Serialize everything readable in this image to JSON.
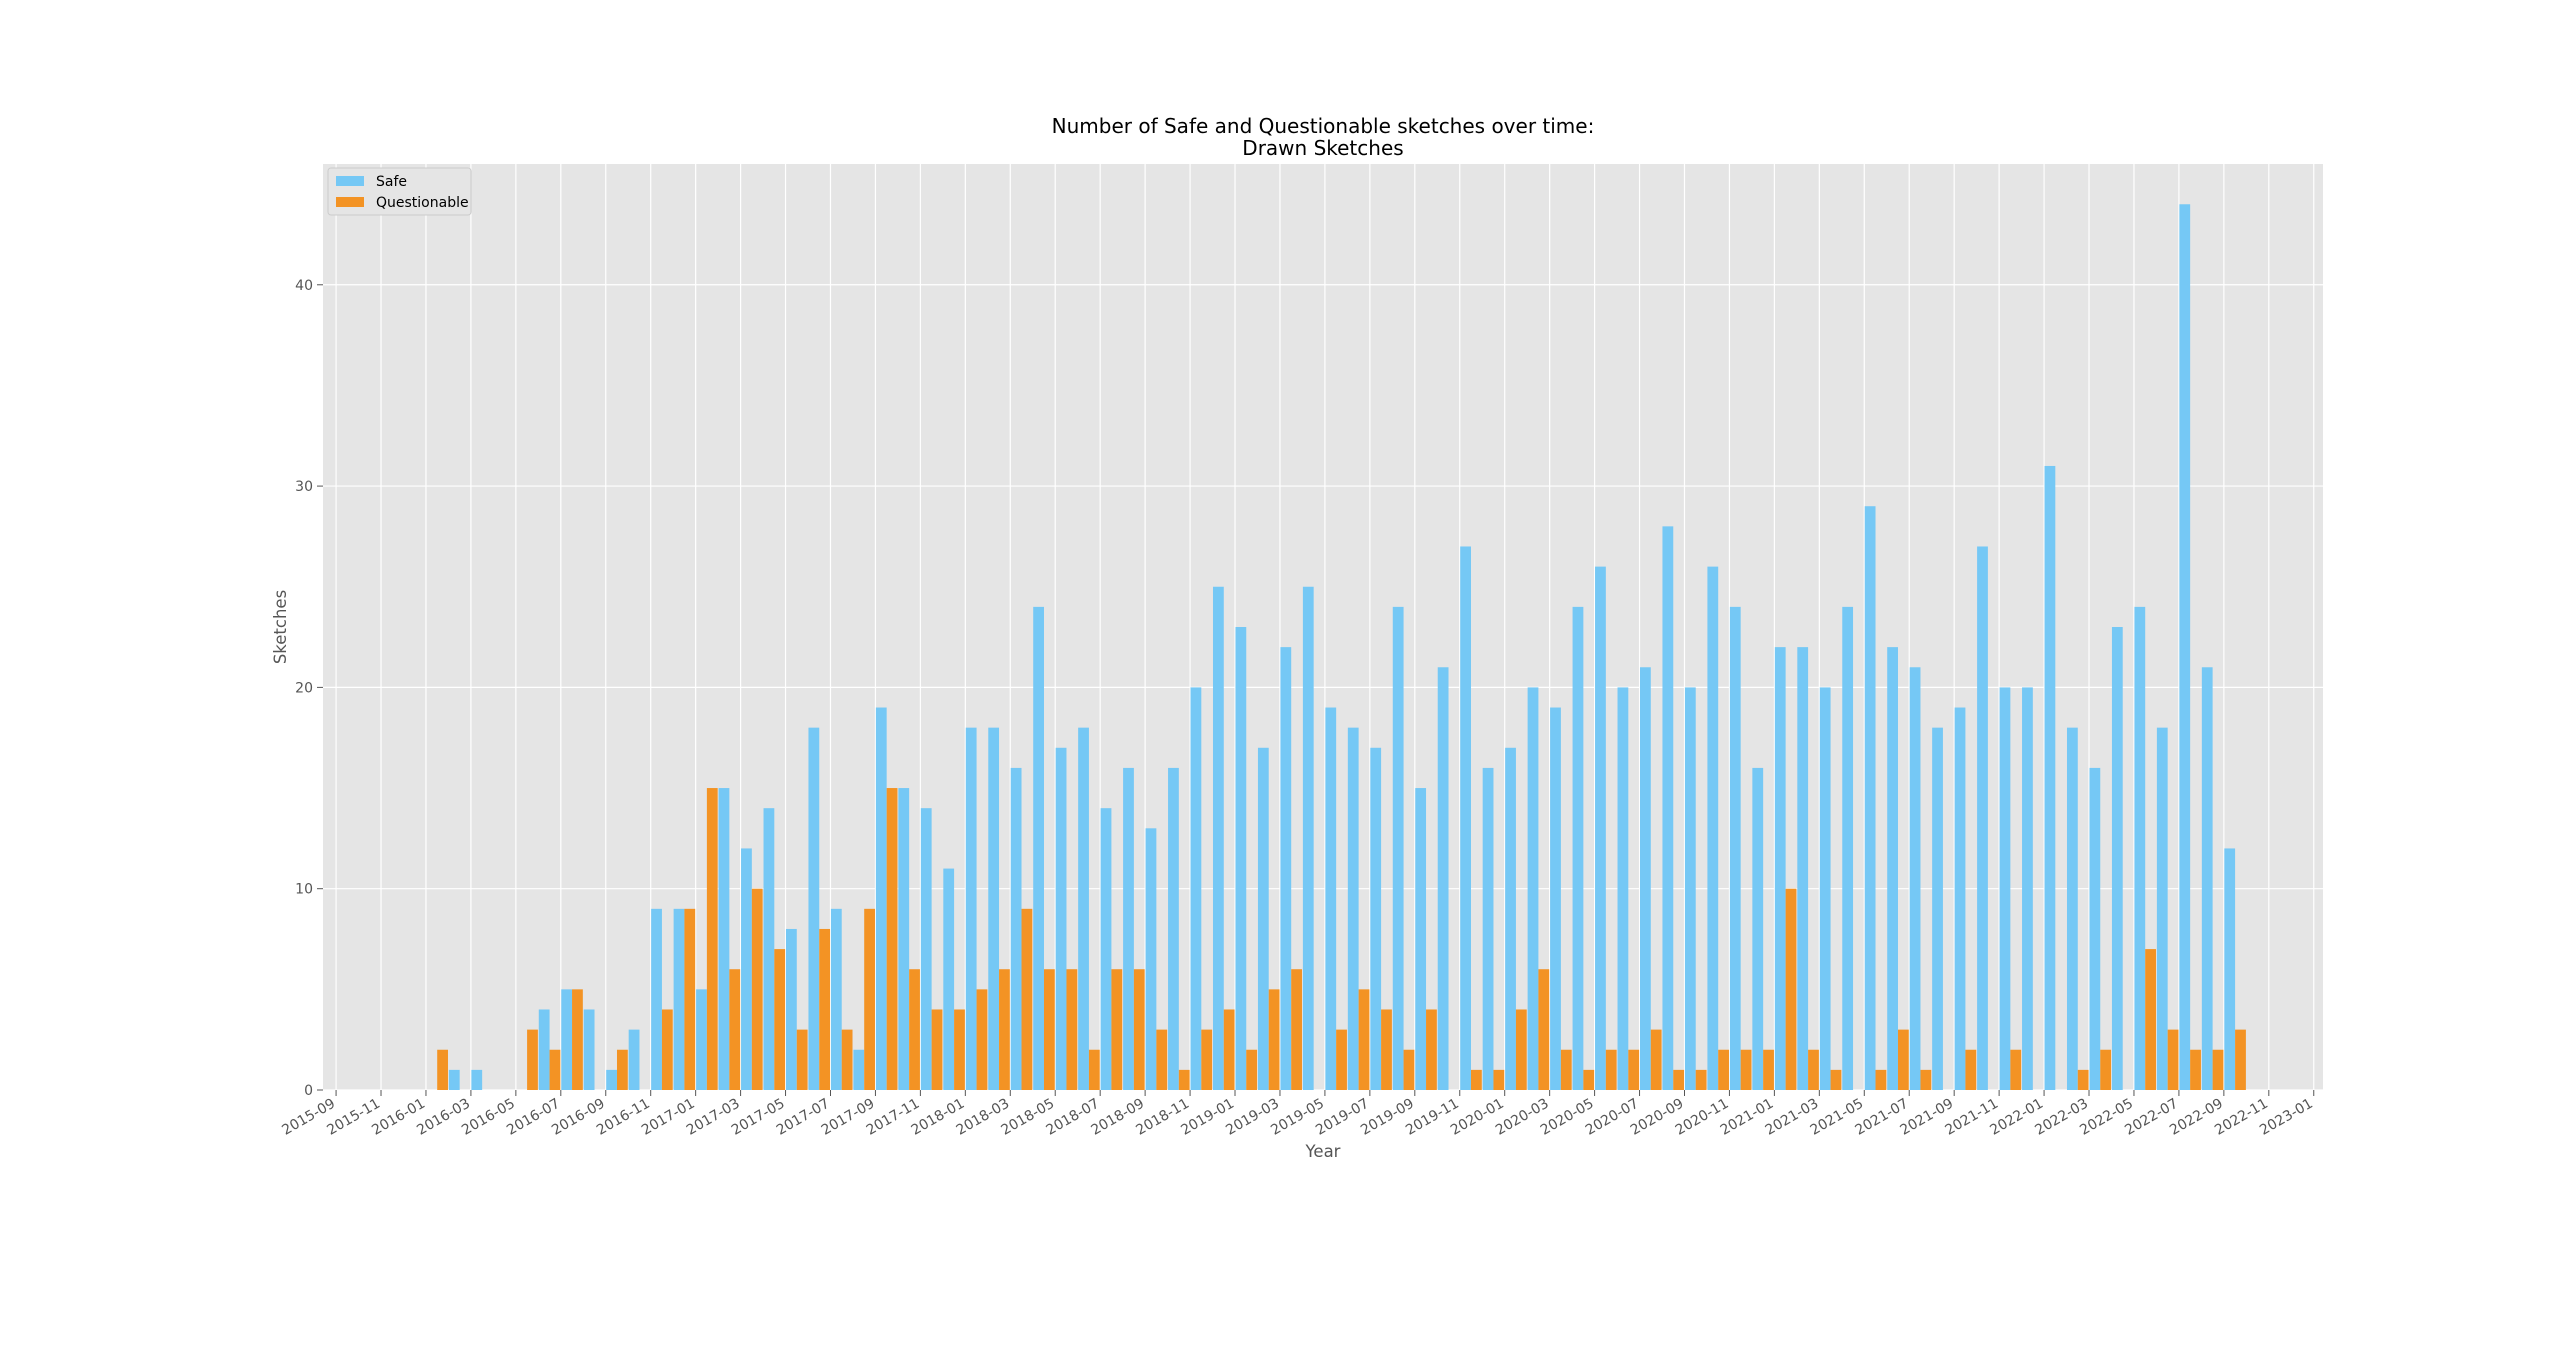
{
  "chart_data": {
    "type": "bar",
    "title": "Number of Safe and Questionable sketches over time:",
    "subtitle": "Drawn Sketches",
    "xlabel": "Year",
    "ylabel": "Sketches",
    "ylim": [
      0,
      46
    ],
    "y_ticks": [
      0,
      10,
      20,
      30,
      40
    ],
    "x_tick_labels": [
      "2015-09",
      "2015-11",
      "2016-01",
      "2016-03",
      "2016-05",
      "2016-07",
      "2016-09",
      "2016-11",
      "2017-01",
      "2017-03",
      "2017-05",
      "2017-07",
      "2017-09",
      "2017-11",
      "2018-01",
      "2018-03",
      "2018-05",
      "2018-07",
      "2018-09",
      "2018-11",
      "2019-01",
      "2019-03",
      "2019-05",
      "2019-07",
      "2019-09",
      "2019-11",
      "2020-01",
      "2020-03",
      "2020-05",
      "2020-07",
      "2020-09",
      "2020-11",
      "2021-01",
      "2021-03",
      "2021-05",
      "2021-07",
      "2021-09",
      "2021-11",
      "2022-01",
      "2022-03",
      "2022-05",
      "2022-07",
      "2022-09",
      "2022-11",
      "2023-01"
    ],
    "x_range": [
      "2015-09",
      "2023-01"
    ],
    "grid": true,
    "legend_position": "top-left",
    "categories": [
      "2015-12",
      "2016-01",
      "2016-02",
      "2016-03",
      "2016-04",
      "2016-05",
      "2016-06",
      "2016-07",
      "2016-08",
      "2016-09",
      "2016-10",
      "2016-11",
      "2016-12",
      "2017-01",
      "2017-02",
      "2017-03",
      "2017-04",
      "2017-05",
      "2017-06",
      "2017-07",
      "2017-08",
      "2017-09",
      "2017-10",
      "2017-11",
      "2017-12",
      "2018-01",
      "2018-02",
      "2018-03",
      "2018-04",
      "2018-05",
      "2018-06",
      "2018-07",
      "2018-08",
      "2018-09",
      "2018-10",
      "2018-11",
      "2018-12",
      "2019-01",
      "2019-02",
      "2019-03",
      "2019-04",
      "2019-05",
      "2019-06",
      "2019-07",
      "2019-08",
      "2019-09",
      "2019-10",
      "2019-11",
      "2019-12",
      "2020-01",
      "2020-02",
      "2020-03",
      "2020-04",
      "2020-05",
      "2020-06",
      "2020-07",
      "2020-08",
      "2020-09",
      "2020-10",
      "2020-11",
      "2020-12",
      "2021-01",
      "2021-02",
      "2021-03",
      "2021-04",
      "2021-05",
      "2021-06",
      "2021-07",
      "2021-08",
      "2021-09",
      "2021-10",
      "2021-11",
      "2021-12",
      "2022-01",
      "2022-02",
      "2022-03",
      "2022-04",
      "2022-05",
      "2022-06",
      "2022-07",
      "2022-08",
      "2022-09"
    ],
    "series": [
      {
        "name": "Safe",
        "color": "#75c8f5",
        "values": [
          0,
          0,
          1,
          1,
          0,
          0,
          4,
          5,
          4,
          1,
          3,
          9,
          9,
          5,
          15,
          12,
          14,
          8,
          18,
          9,
          2,
          19,
          15,
          14,
          11,
          18,
          18,
          16,
          24,
          17,
          18,
          14,
          16,
          13,
          16,
          20,
          25,
          23,
          17,
          22,
          25,
          19,
          18,
          17,
          24,
          15,
          21,
          27,
          16,
          17,
          20,
          19,
          24,
          26,
          20,
          21,
          28,
          20,
          26,
          24,
          16,
          22,
          22,
          20,
          24,
          29,
          22,
          21,
          18,
          19,
          27,
          20,
          20,
          31,
          18,
          16,
          23,
          24,
          18,
          44,
          21,
          12
        ]
      },
      {
        "name": "Questionable",
        "color": "#f39324",
        "values": [
          0,
          2,
          0,
          0,
          0,
          3,
          2,
          5,
          0,
          2,
          0,
          4,
          9,
          15,
          6,
          10,
          7,
          3,
          8,
          3,
          9,
          15,
          6,
          4,
          4,
          5,
          6,
          9,
          6,
          6,
          2,
          6,
          6,
          3,
          1,
          3,
          4,
          2,
          5,
          6,
          0,
          3,
          5,
          4,
          2,
          4,
          0,
          1,
          1,
          4,
          6,
          2,
          1,
          2,
          2,
          3,
          1,
          1,
          2,
          2,
          2,
          10,
          2,
          1,
          0,
          1,
          3,
          1,
          0,
          2,
          0,
          2,
          0,
          0,
          1,
          2,
          0,
          7,
          3,
          2,
          2,
          3
        ]
      }
    ]
  }
}
